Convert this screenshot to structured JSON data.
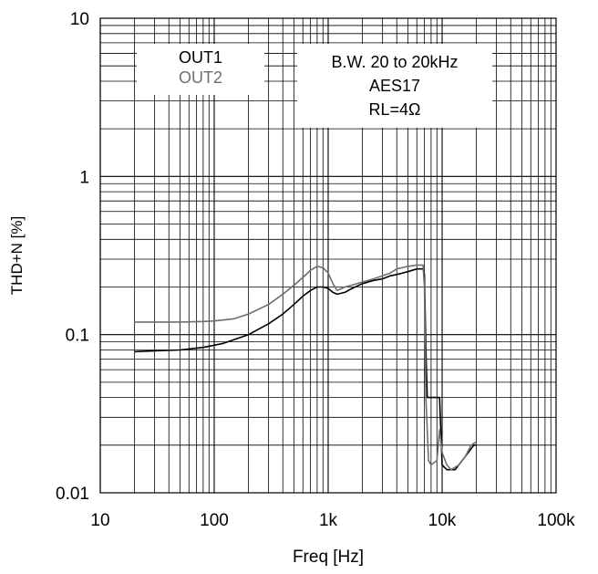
{
  "chart_data": {
    "type": "line",
    "xlabel": "Freq [Hz]",
    "ylabel": "THD+N [%]",
    "xscale": "log",
    "yscale": "log",
    "xlim": [
      10,
      100000
    ],
    "ylim": [
      0.01,
      10
    ],
    "x_ticks": [
      10,
      100,
      1000,
      10000,
      100000
    ],
    "x_tick_labels": [
      "10",
      "100",
      "1k",
      "10k",
      "100k"
    ],
    "y_ticks": [
      0.01,
      0.1,
      1,
      10
    ],
    "y_tick_labels": [
      "0.01",
      "0.1",
      "1",
      "10"
    ],
    "grid": true,
    "legend": {
      "position": "top-left",
      "entries": [
        {
          "label": "OUT1",
          "color": "#000000"
        },
        {
          "label": "OUT2",
          "color": "#6e6e6e"
        }
      ]
    },
    "annotation": {
      "position": "top-center",
      "lines": [
        "B.W. 20 to 20kHz",
        "AES17",
        "RL=4Ω"
      ]
    },
    "series": [
      {
        "name": "OUT1",
        "color": "#000000",
        "points": [
          [
            20,
            0.078
          ],
          [
            30,
            0.079
          ],
          [
            50,
            0.08
          ],
          [
            80,
            0.083
          ],
          [
            120,
            0.088
          ],
          [
            200,
            0.1
          ],
          [
            300,
            0.117
          ],
          [
            400,
            0.135
          ],
          [
            500,
            0.155
          ],
          [
            600,
            0.175
          ],
          [
            700,
            0.19
          ],
          [
            800,
            0.2
          ],
          [
            900,
            0.2
          ],
          [
            1000,
            0.196
          ],
          [
            1100,
            0.185
          ],
          [
            1200,
            0.18
          ],
          [
            1400,
            0.185
          ],
          [
            1600,
            0.195
          ],
          [
            2000,
            0.21
          ],
          [
            2500,
            0.22
          ],
          [
            3000,
            0.225
          ],
          [
            3500,
            0.235
          ],
          [
            4000,
            0.24
          ],
          [
            5000,
            0.25
          ],
          [
            6000,
            0.26
          ],
          [
            6800,
            0.26
          ],
          [
            7000,
            0.24
          ],
          [
            7200,
            0.08
          ],
          [
            7400,
            0.04
          ],
          [
            8000,
            0.04
          ],
          [
            9000,
            0.04
          ],
          [
            9500,
            0.04
          ],
          [
            10000,
            0.015
          ],
          [
            11000,
            0.014
          ],
          [
            12000,
            0.014
          ],
          [
            13000,
            0.014
          ],
          [
            14000,
            0.015
          ],
          [
            15000,
            0.016
          ],
          [
            16000,
            0.017
          ],
          [
            17000,
            0.018
          ],
          [
            18000,
            0.019
          ],
          [
            19000,
            0.02
          ],
          [
            20000,
            0.02
          ]
        ]
      },
      {
        "name": "OUT2",
        "color": "#6e6e6e",
        "points": [
          [
            20,
            0.12
          ],
          [
            30,
            0.12
          ],
          [
            50,
            0.12
          ],
          [
            80,
            0.121
          ],
          [
            100,
            0.122
          ],
          [
            150,
            0.126
          ],
          [
            200,
            0.135
          ],
          [
            300,
            0.155
          ],
          [
            400,
            0.18
          ],
          [
            500,
            0.205
          ],
          [
            600,
            0.23
          ],
          [
            700,
            0.255
          ],
          [
            800,
            0.27
          ],
          [
            900,
            0.265
          ],
          [
            1000,
            0.245
          ],
          [
            1100,
            0.21
          ],
          [
            1200,
            0.19
          ],
          [
            1400,
            0.2
          ],
          [
            1600,
            0.205
          ],
          [
            2000,
            0.215
          ],
          [
            2500,
            0.225
          ],
          [
            3000,
            0.235
          ],
          [
            3500,
            0.245
          ],
          [
            4000,
            0.26
          ],
          [
            5000,
            0.27
          ],
          [
            6000,
            0.275
          ],
          [
            6800,
            0.275
          ],
          [
            7000,
            0.2
          ],
          [
            7200,
            0.04
          ],
          [
            7400,
            0.025
          ],
          [
            7600,
            0.016
          ],
          [
            8000,
            0.015
          ],
          [
            9000,
            0.016
          ],
          [
            9500,
            0.025
          ],
          [
            10000,
            0.018
          ],
          [
            11000,
            0.015
          ],
          [
            12000,
            0.014
          ],
          [
            14000,
            0.015
          ],
          [
            16000,
            0.017
          ],
          [
            18000,
            0.02
          ],
          [
            20000,
            0.021
          ]
        ]
      }
    ]
  }
}
